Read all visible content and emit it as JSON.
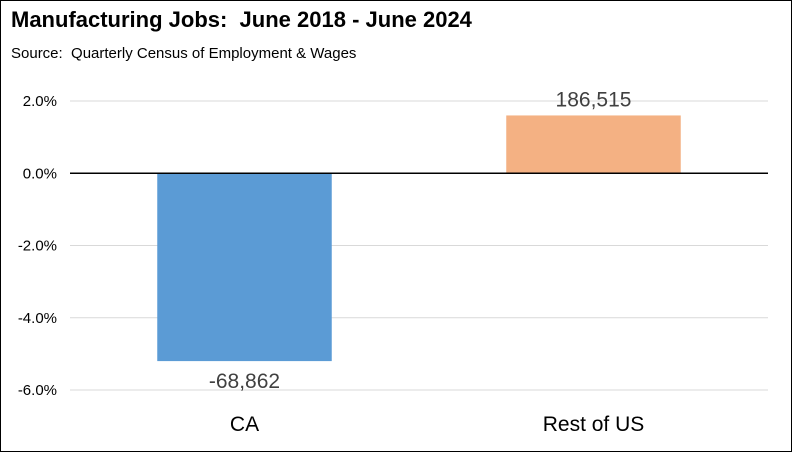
{
  "chart_data": {
    "type": "bar",
    "title": "Manufacturing Jobs:  June 2018 - June 2024",
    "subtitle": "Source:  Quarterly Census of Employment & Wages",
    "categories": [
      "CA",
      "Rest of US"
    ],
    "values": [
      -5.2,
      1.6
    ],
    "data_labels": [
      "-68,862",
      "186,515"
    ],
    "colors": [
      "#5b9bd5",
      "#f4b183"
    ],
    "ylim": [
      -6.0,
      2.0
    ],
    "yticks": [
      2.0,
      0.0,
      -2.0,
      -4.0,
      -6.0
    ],
    "ytick_labels": [
      "2.0%",
      "0.0%",
      "-2.0%",
      "-4.0%",
      "-6.0%"
    ],
    "grid": true,
    "xlabel": "",
    "ylabel": ""
  }
}
